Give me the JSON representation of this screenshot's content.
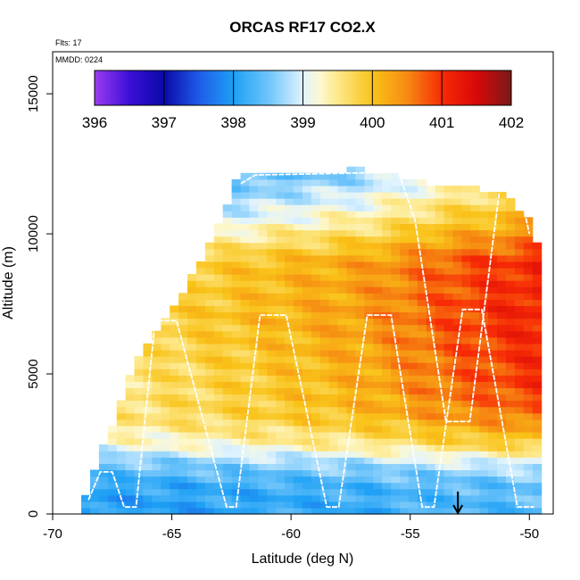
{
  "chart_data": {
    "type": "heatmap",
    "title": "ORCAS RF17 CO2.X",
    "xlabel": "Latitude (deg N)",
    "ylabel": "Altitude (m)",
    "xlim": [
      -70,
      -49
    ],
    "ylim": [
      0,
      16500
    ],
    "x_ticks": [
      "-70",
      "-65",
      "-60",
      "-55",
      "-50"
    ],
    "y_ticks": [
      "0",
      "5000",
      "10000",
      "15000"
    ],
    "annotations": {
      "flights": "Flts: 17",
      "date": "MMDD: 0224"
    },
    "colorbar": {
      "min": 396,
      "max": 402,
      "ticks": [
        "396",
        "397",
        "398",
        "399",
        "400",
        "401",
        "402"
      ],
      "stops": [
        {
          "value": 396.0,
          "color": "#9c3cf0"
        },
        {
          "value": 396.5,
          "color": "#3c0fd8"
        },
        {
          "value": 397.0,
          "color": "#0a0aa6"
        },
        {
          "value": 397.5,
          "color": "#1e5be8"
        },
        {
          "value": 398.0,
          "color": "#1ea0f5"
        },
        {
          "value": 398.5,
          "color": "#6ec4fa"
        },
        {
          "value": 399.0,
          "color": "#dff3ff"
        },
        {
          "value": 399.25,
          "color": "#fdf8d0"
        },
        {
          "value": 399.5,
          "color": "#fde88a"
        },
        {
          "value": 400.0,
          "color": "#f9c319"
        },
        {
          "value": 400.5,
          "color": "#f68b12"
        },
        {
          "value": 401.0,
          "color": "#f72b06"
        },
        {
          "value": 401.5,
          "color": "#d80808"
        },
        {
          "value": 402.0,
          "color": "#7a1a1a"
        }
      ]
    },
    "field": {
      "lat_min": -68.8,
      "lat_max": -49.5,
      "top_profile": [
        [
          -68.8,
          300
        ],
        [
          -66.5,
          5500
        ],
        [
          -65,
          7300
        ],
        [
          -63.5,
          9500
        ],
        [
          -62.5,
          11500
        ],
        [
          -62.2,
          12200
        ],
        [
          -57,
          12300
        ],
        [
          -54,
          11800
        ],
        [
          -51,
          11500
        ],
        [
          -50,
          10500
        ],
        [
          -49.5,
          9200
        ]
      ],
      "bottom_profile": [
        [
          -68.8,
          0
        ],
        [
          -49.5,
          0
        ]
      ],
      "value_profile": [
        {
          "alt": 0,
          "value": 398.05
        },
        {
          "alt": 1000,
          "value": 398.15
        },
        {
          "alt": 1800,
          "value": 398.6
        },
        {
          "alt": 2500,
          "value": 399.3
        },
        {
          "alt": 3500,
          "value": 399.75
        },
        {
          "alt": 5000,
          "value": 399.8
        },
        {
          "alt": 7000,
          "value": 399.95
        },
        {
          "alt": 9000,
          "value": 399.9
        },
        {
          "alt": 10500,
          "value": 399.0
        },
        {
          "alt": 12300,
          "value": 398.2
        }
      ],
      "lat_gradient": [
        {
          "lat": -69,
          "value": -0.35
        },
        {
          "lat": -63,
          "value": 0.0
        },
        {
          "lat": -57,
          "value": 0.4
        },
        {
          "lat": -53,
          "value": 0.9
        },
        {
          "lat": -49.5,
          "value": 1.2
        }
      ]
    },
    "flight_track": [
      [
        -68.5,
        500
      ],
      [
        -68.0,
        1500
      ],
      [
        -67.5,
        1500
      ],
      [
        -67.0,
        250
      ],
      [
        -66.5,
        250
      ],
      [
        -65.7,
        6900
      ],
      [
        -64.8,
        6900
      ],
      [
        -63.2,
        1800
      ],
      [
        -62.7,
        250
      ],
      [
        -62.3,
        250
      ],
      [
        -61.3,
        7100
      ],
      [
        -60.2,
        7100
      ],
      [
        -58.5,
        250
      ],
      [
        -58.0,
        250
      ],
      [
        -56.8,
        7100
      ],
      [
        -55.8,
        7100
      ],
      [
        -54.5,
        250
      ],
      [
        -54.0,
        250
      ],
      [
        -52.8,
        7300
      ],
      [
        -52.0,
        7300
      ],
      [
        -50.5,
        250
      ],
      [
        -49.8,
        250
      ]
    ],
    "flight_track_upper": [
      [
        -62.1,
        11800
      ],
      [
        -61.5,
        12100
      ],
      [
        -55.5,
        12200
      ],
      [
        -54.8,
        10500
      ],
      [
        -53.5,
        3300
      ],
      [
        -52.5,
        3300
      ],
      [
        -51.2,
        11900
      ],
      [
        -50.5,
        11900
      ],
      [
        -50.0,
        10000
      ]
    ],
    "marker": {
      "lat": -53,
      "alt_top": 800,
      "alt_bottom": 0
    }
  }
}
